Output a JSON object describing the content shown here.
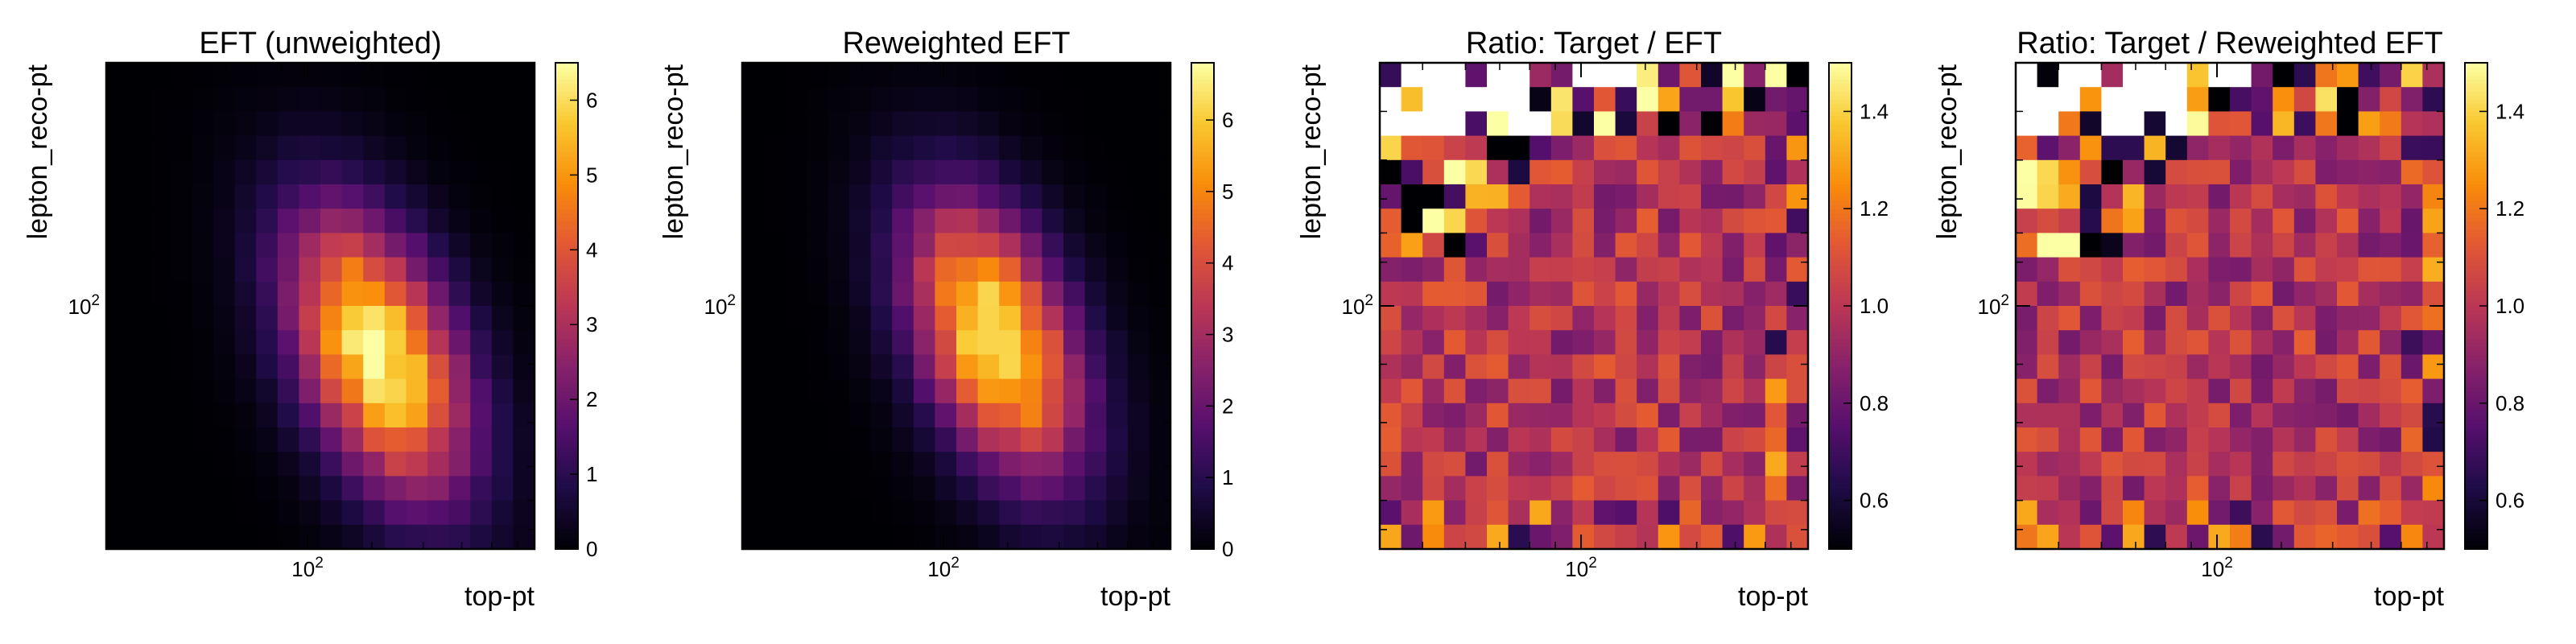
{
  "chart_data": [
    {
      "type": "heatmap",
      "title": "EFT (unweighted)",
      "xlabel": "top-pt",
      "ylabel": "lepton_reco-pt",
      "x_scale": "log",
      "y_scale": "log",
      "x_ticks": [
        "10^2"
      ],
      "y_ticks": [
        "10^2"
      ],
      "colormap": "inferno",
      "colorbar_range": [
        0,
        6.5
      ],
      "colorbar_ticks": [
        "0",
        "1",
        "2",
        "3",
        "4",
        "5",
        "6"
      ],
      "grid": "20x20",
      "peak_value": 6.3,
      "peak_location": "center-right"
    },
    {
      "type": "heatmap",
      "title": "Reweighted EFT",
      "xlabel": "top-pt",
      "ylabel": "lepton_reco-pt",
      "x_scale": "log",
      "y_scale": "log",
      "x_ticks": [
        "10^2"
      ],
      "y_ticks": [
        "10^2"
      ],
      "colormap": "inferno",
      "colorbar_range": [
        0,
        6.8
      ],
      "colorbar_ticks": [
        "0",
        "1",
        "2",
        "3",
        "4",
        "5",
        "6"
      ],
      "grid": "20x20",
      "peak_value": 6.6,
      "peak_location": "center"
    },
    {
      "type": "heatmap",
      "title": "Ratio: Target / EFT",
      "xlabel": "top-pt",
      "ylabel": "lepton_reco-pt",
      "x_scale": "log",
      "y_scale": "log",
      "x_ticks": [
        "10^2"
      ],
      "y_ticks": [
        "10^2"
      ],
      "colormap": "inferno",
      "colorbar_range": [
        0.5,
        1.5
      ],
      "colorbar_ticks": [
        "0.6",
        "0.8",
        "1.0",
        "1.2",
        "1.4"
      ],
      "grid": "20x20",
      "typical_value": 1.0,
      "empty_bins_region": "top-left"
    },
    {
      "type": "heatmap",
      "title": "Ratio: Target / Reweighted EFT",
      "xlabel": "top-pt",
      "ylabel": "lepton_reco-pt",
      "x_scale": "log",
      "y_scale": "log",
      "x_ticks": [
        "10^2"
      ],
      "y_ticks": [
        "10^2"
      ],
      "colormap": "inferno",
      "colorbar_range": [
        0.5,
        1.5
      ],
      "colorbar_ticks": [
        "0.6",
        "0.8",
        "1.0",
        "1.2",
        "1.4"
      ],
      "grid": "20x20",
      "typical_value": 1.0,
      "empty_bins_region": "top-left"
    }
  ]
}
